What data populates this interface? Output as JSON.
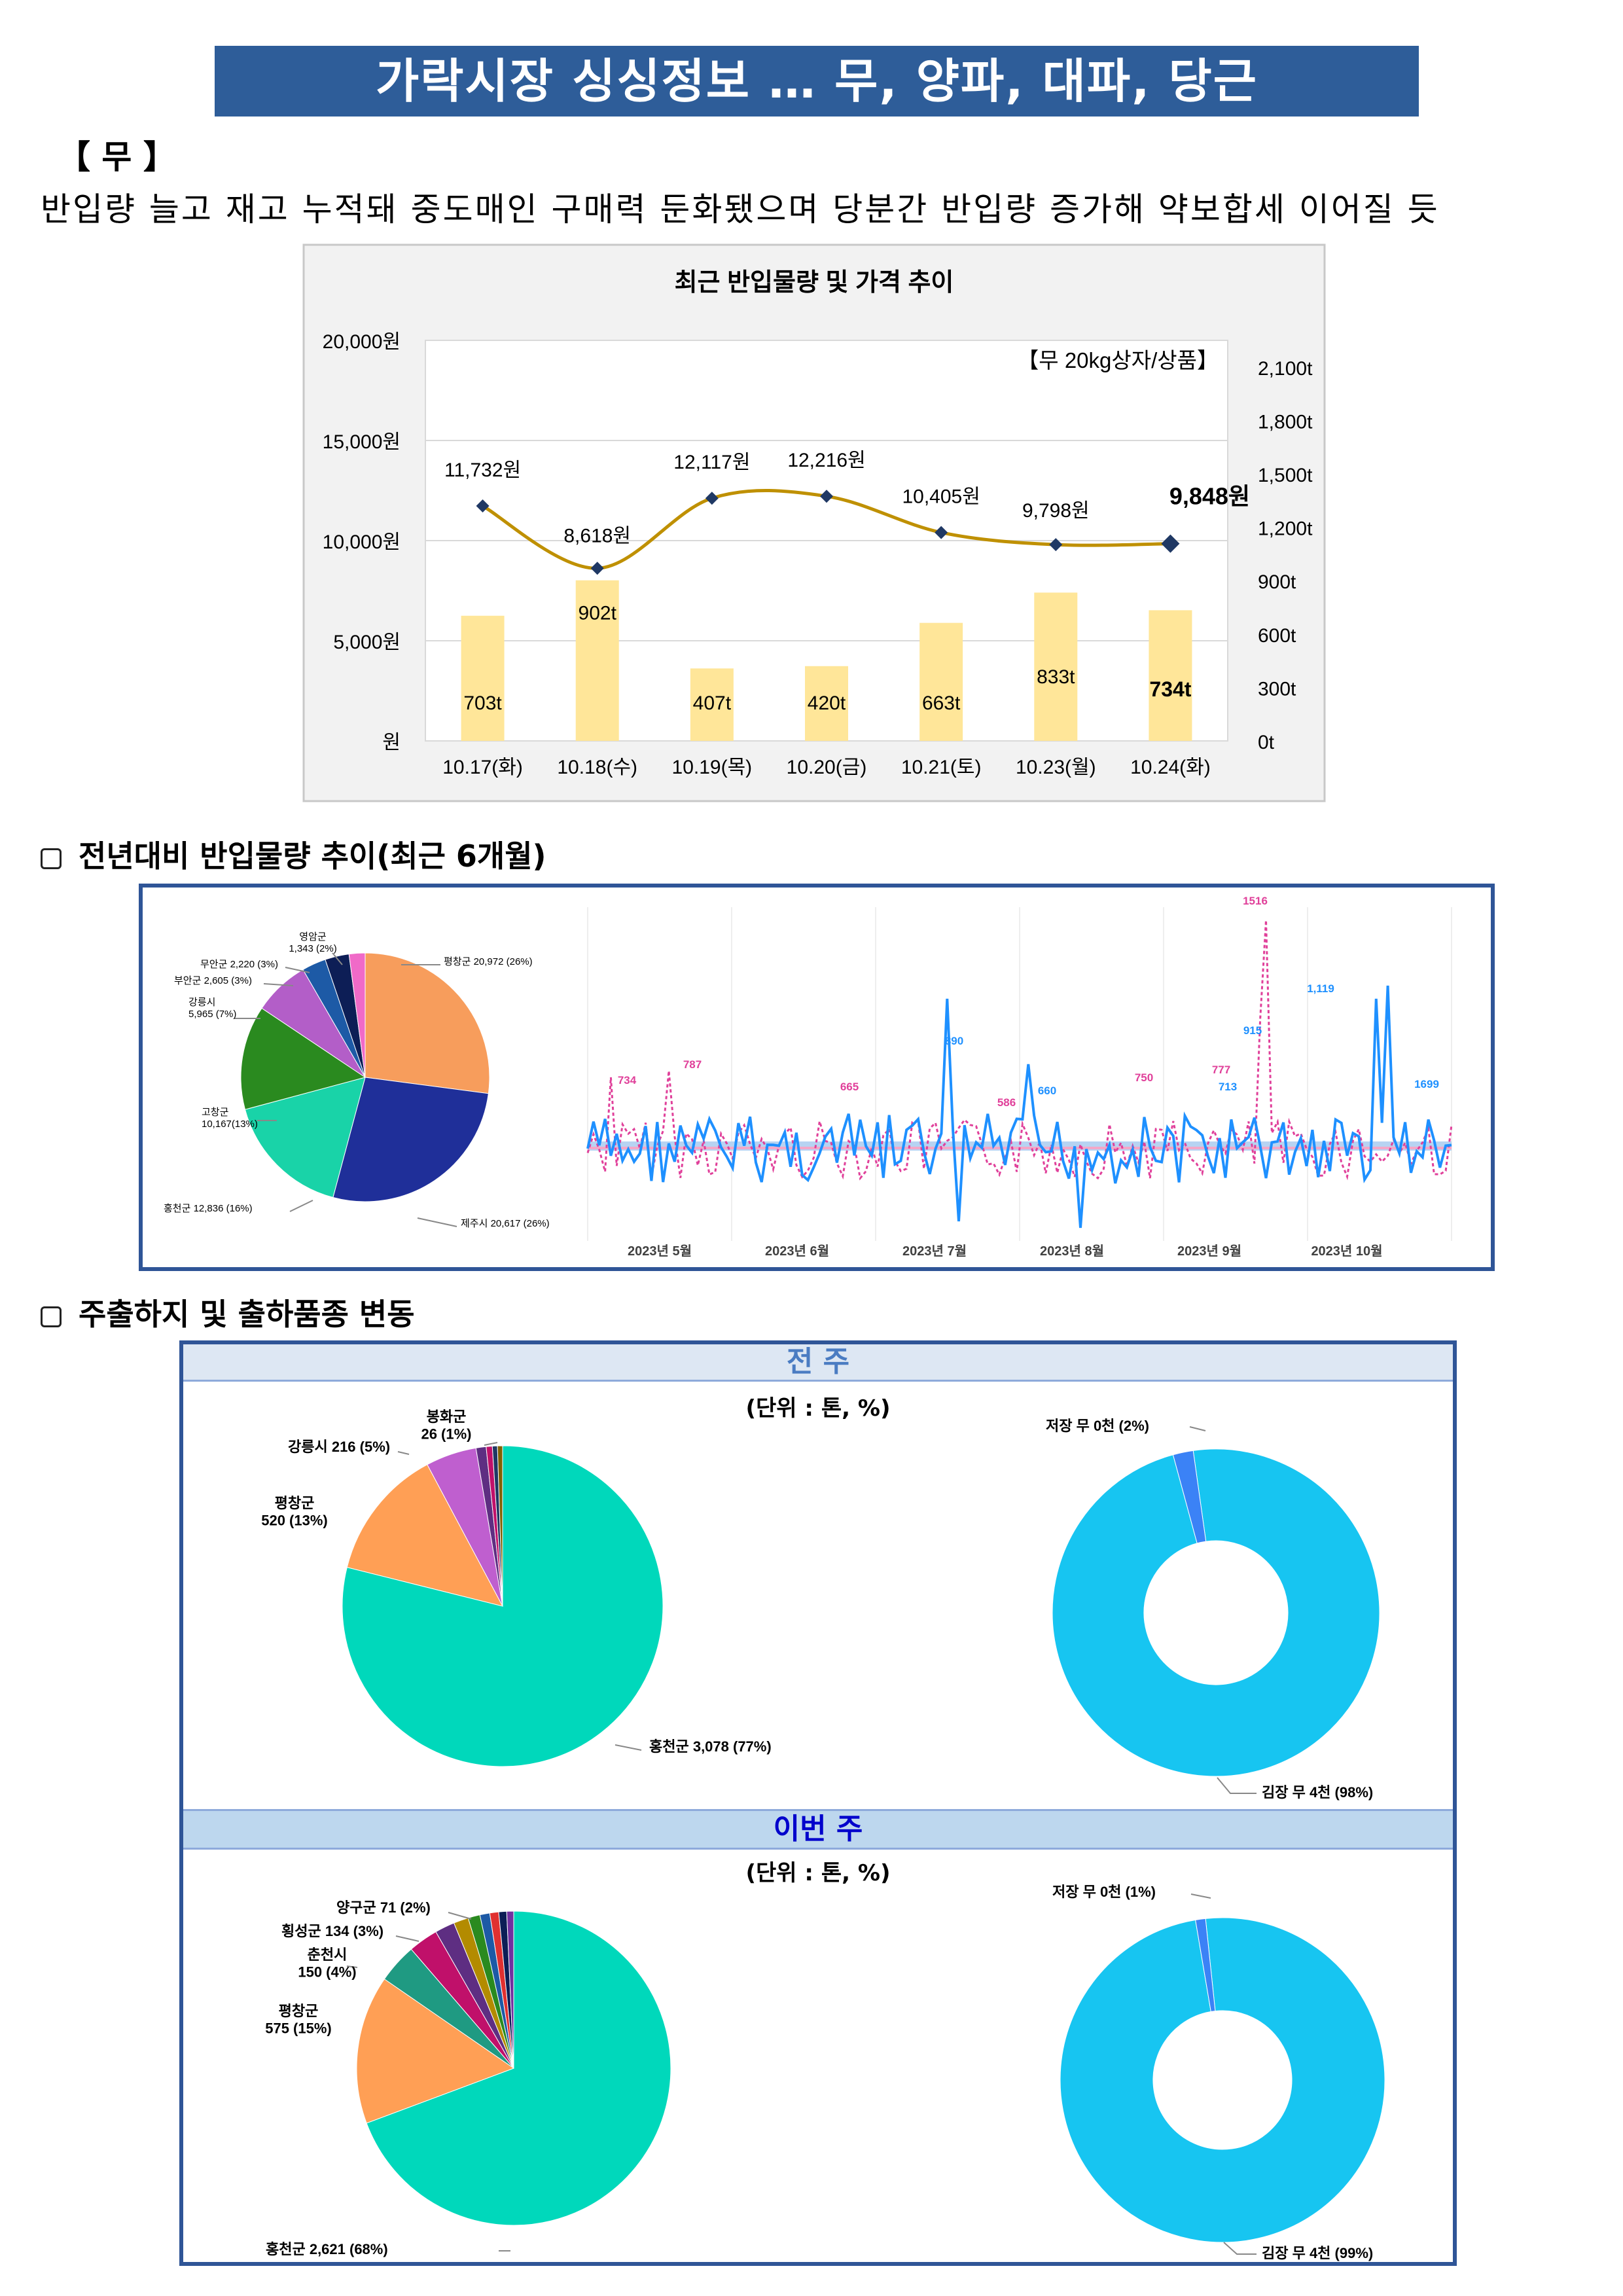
{
  "title": "가락시장 싱싱정보 … 무, 양파, 대파, 당근",
  "section_label": "【 무 】",
  "summary": "반입량 늘고 재고 누적돼 중도매인 구매력 둔화됐으며 당분간 반입량 증가해 약보합세 이어질 듯",
  "chart1": {
    "title": "최근 반입물량 및 가격 추이",
    "note": "【무 20kg상자/상품】",
    "left_ticks": [
      "20,000원",
      "15,000원",
      "10,000원",
      "5,000원",
      "원"
    ],
    "right_ticks": [
      "2,100t",
      "1,800t",
      "1,500t",
      "1,200t",
      "900t",
      "600t",
      "300t",
      "0t"
    ]
  },
  "chart_data": [
    {
      "type": "bar+line",
      "title": "최근 반입물량 및 가격 추이",
      "categories": [
        "10.17(화)",
        "10.18(수)",
        "10.19(목)",
        "10.20(금)",
        "10.21(토)",
        "10.23(월)",
        "10.24(화)"
      ],
      "series": [
        {
          "values": [
            703,
            902,
            407,
            420,
            663,
            833,
            734
          ],
          "labels": [
            "703t",
            "902t",
            "407t",
            "420t",
            "663t",
            "833t",
            "734t"
          ],
          "axis": "right"
        },
        {
          "values": [
            11732,
            8618,
            12117,
            12216,
            10405,
            9798,
            9848
          ],
          "labels": [
            "11,732원",
            "8,618원",
            "12,117원",
            "12,216원",
            "10,405원",
            "9,798원",
            "9,848원"
          ],
          "axis": "left"
        }
      ],
      "ylim": [
        0,
        20000
      ],
      "y2lim": [
        0,
        2250
      ],
      "colors": {
        "bar": "#ffe699",
        "line": "#bf9000",
        "marker": "#1f3864"
      }
    },
    {
      "type": "pie",
      "labels": [
        "평창군 20,972 (26%)",
        "제주시 20,617 (26%)",
        "홍천군 12,836 (16%)",
        "고창군 10,167(13%)",
        "강릉시 5,965 (7%)",
        "부안군 2,605 (3%)",
        "무안군 2,220 (3%)",
        "영암군 1,343 (2%)"
      ],
      "values": [
        26,
        26,
        16,
        13,
        7,
        3,
        3,
        2
      ],
      "colors": [
        "#f79d5c",
        "#1f2f99",
        "#19d3a8",
        "#2a8a1f",
        "#b35ec8",
        "#1d5aa6",
        "#0d1e56",
        "#f06ac8"
      ]
    },
    {
      "type": "line",
      "x_labels": [
        "2023년 5월",
        "2023년 6월",
        "2023년 7월",
        "2023년 8월",
        "2023년 9월",
        "2023년 10월"
      ],
      "peak_labels": [
        "734",
        "787",
        "665",
        "586",
        "750",
        "777",
        "1516",
        "890",
        "660",
        "1,119",
        "713",
        "915",
        "1699"
      ],
      "colors": {
        "this_year": "#1e90ff",
        "last_year": "#e0409a"
      }
    },
    {
      "type": "pie",
      "title": "전 주",
      "unit": "(단위 : 톤, %)",
      "labels": [
        "홍천군 3,078 (77%)",
        "평창군 520 (13%)",
        "강릉시 216 (5%)",
        "봉화군 26 (1%)"
      ],
      "values": [
        77,
        13,
        5,
        1
      ],
      "colors": [
        "#00d8bb",
        "#ff9f55",
        "#bf5fcf",
        "#5e2e82"
      ]
    },
    {
      "type": "pie",
      "title": "전 주",
      "labels": [
        "김장 무 4천 (98%)",
        "저장 무 0천 (2%)"
      ],
      "values": [
        98,
        2
      ],
      "colors": [
        "#17c5f1",
        "#3b82f6"
      ]
    },
    {
      "type": "pie",
      "title": "이번 주",
      "unit": "(단위 : 톤, %)",
      "labels": [
        "홍천군 2,621 (68%)",
        "평창군 575 (15%)",
        "춘천시 150 (4%)",
        "횡성군 134 (3%)",
        "양구군 71 (2%)"
      ],
      "values": [
        68,
        15,
        4,
        3,
        2
      ],
      "colors": [
        "#00d8bb",
        "#ff9f55",
        "#1f9a82",
        "#c0106a",
        "#5e2e82"
      ]
    },
    {
      "type": "pie",
      "title": "이번 주",
      "labels": [
        "김장 무 4천 (99%)",
        "저장 무 0천 (1%)"
      ],
      "values": [
        99,
        1
      ],
      "colors": [
        "#17c5f1",
        "#3b82f6"
      ]
    }
  ],
  "section2": {
    "title": "전년대비 반입물량 추이(최근 6개월)"
  },
  "section3": {
    "title": "주출하지 및 출하품종 변동",
    "prev_week": "전 주",
    "this_week": "이번 주",
    "unit": "(단위 : 톤, %)"
  }
}
